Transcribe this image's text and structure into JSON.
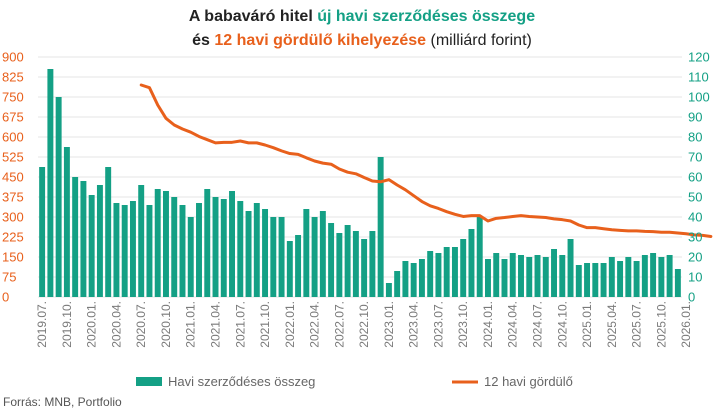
{
  "chart_data": {
    "type": "bar+line",
    "title": {
      "line1": [
        {
          "text": "A babaváró hitel ",
          "role": "plain"
        },
        {
          "text": "új havi szerződéses összege",
          "role": "bar"
        }
      ],
      "line2": [
        {
          "text": "és ",
          "role": "plain"
        },
        {
          "text": "12 havi gördülő kihelyezése",
          "role": "line"
        },
        {
          "text": " (milliárd forint)",
          "role": "normal"
        }
      ]
    },
    "colors": {
      "bar": "#14a085",
      "line": "#e8601c",
      "text": "#222222",
      "tick_x": "#7a7a7a"
    },
    "left_axis": {
      "min": 0,
      "max": 900,
      "ticks": [
        0,
        75,
        150,
        225,
        300,
        375,
        450,
        525,
        600,
        675,
        750,
        825,
        900
      ]
    },
    "right_axis": {
      "min": 0,
      "max": 120,
      "ticks": [
        0,
        10,
        20,
        30,
        40,
        50,
        60,
        70,
        80,
        90,
        100,
        110,
        120
      ]
    },
    "x_labels": [
      "2019.07.",
      "2019.10.",
      "2020.01.",
      "2020.04.",
      "2020.07.",
      "2020.10.",
      "2021.01.",
      "2021.04.",
      "2021.07.",
      "2021.10.",
      "2022.01.",
      "2022.04.",
      "2022.07.",
      "2022.10.",
      "2023.01.",
      "2023.04.",
      "2023.07.",
      "2023.10.",
      "2024.01.",
      "2024.04.",
      "2024.07.",
      "2024.10.",
      "2025.01.",
      "2025.04.",
      "2025.07.",
      "2025.10.",
      "2026.01."
    ],
    "bar_series": {
      "name": "Havi szerződéses összeg",
      "axis": "right",
      "values": [
        65,
        114,
        100,
        75,
        60,
        58,
        51,
        56,
        65,
        47,
        46,
        48,
        56,
        46,
        54,
        53,
        50,
        46,
        40,
        47,
        54,
        50,
        49,
        53,
        48,
        43,
        47,
        44,
        40,
        40,
        28,
        31,
        44,
        40,
        43,
        37,
        32,
        36,
        33,
        29,
        33,
        70,
        7,
        13,
        18,
        17,
        19,
        23,
        22,
        25,
        25,
        29,
        34,
        40,
        19,
        22,
        19,
        22,
        21,
        20,
        21,
        20,
        24,
        21,
        29,
        16,
        17,
        17,
        17,
        20,
        18,
        20,
        18,
        21,
        22,
        20,
        21,
        14
      ]
    },
    "line_series": {
      "name": "12 havi gördülő",
      "axis": "left",
      "start_index": 12,
      "values": [
        795,
        785,
        720,
        670,
        645,
        630,
        618,
        602,
        590,
        578,
        580,
        580,
        585,
        578,
        578,
        570,
        560,
        548,
        538,
        535,
        522,
        510,
        502,
        498,
        480,
        468,
        462,
        448,
        435,
        432,
        440,
        420,
        402,
        380,
        358,
        342,
        332,
        320,
        310,
        302,
        305,
        305,
        285,
        295,
        298,
        302,
        305,
        302,
        300,
        298,
        293,
        290,
        285,
        270,
        260,
        260,
        256,
        252,
        250,
        248,
        248,
        246,
        245,
        243,
        243,
        240,
        237,
        233,
        231,
        227
      ]
    }
  },
  "legend": {
    "bar_label": "Havi szerződéses összeg",
    "line_label": "12 havi gördülő"
  },
  "source": "Forrás: MNB, Portfolio"
}
